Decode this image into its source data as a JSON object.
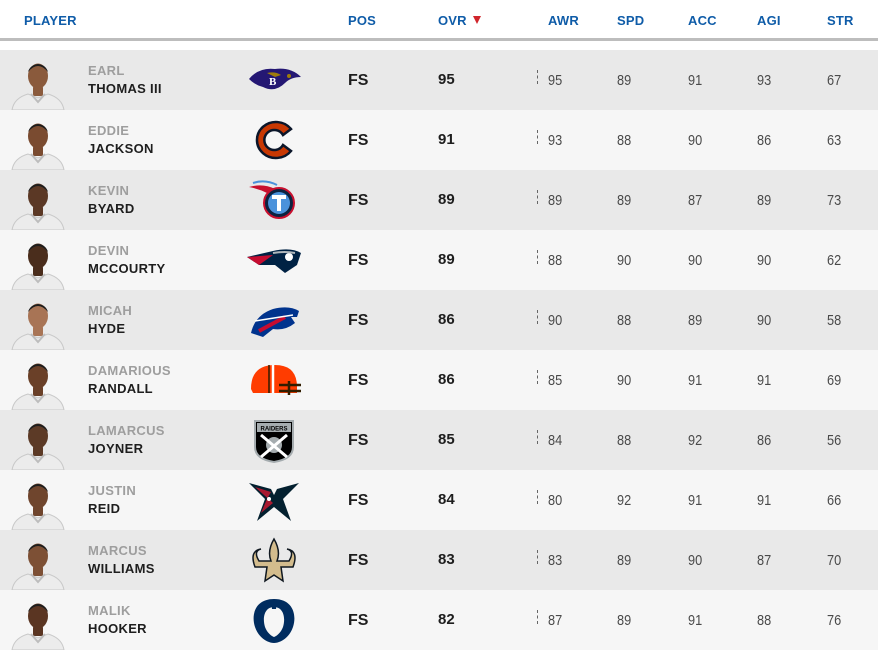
{
  "columns": {
    "player": "PLAYER",
    "pos": "POS",
    "ovr": "OVR",
    "ovr_sort_icon": "triangle-down-red",
    "awr": "AWR",
    "spd": "SPD",
    "acc": "ACC",
    "agi": "AGI",
    "str": "STR"
  },
  "colors": {
    "header_text": "#0f5ca8",
    "sort_arrow": "#d0252b",
    "row_odd": "#e9e9e9",
    "row_even": "#f6f6f6"
  },
  "rows": [
    {
      "first": "EARL",
      "last": "THOMAS III",
      "team_logo": "ravens-logo",
      "pos": "FS",
      "ovr": "95",
      "awr": "95",
      "spd": "89",
      "acc": "91",
      "agi": "93",
      "str": "67"
    },
    {
      "first": "EDDIE",
      "last": "JACKSON",
      "team_logo": "bears-logo",
      "pos": "FS",
      "ovr": "91",
      "awr": "93",
      "spd": "88",
      "acc": "90",
      "agi": "86",
      "str": "63"
    },
    {
      "first": "KEVIN",
      "last": "BYARD",
      "team_logo": "titans-logo",
      "pos": "FS",
      "ovr": "89",
      "awr": "89",
      "spd": "89",
      "acc": "87",
      "agi": "89",
      "str": "73"
    },
    {
      "first": "DEVIN",
      "last": "MCCOURTY",
      "team_logo": "patriots-logo",
      "pos": "FS",
      "ovr": "89",
      "awr": "88",
      "spd": "90",
      "acc": "90",
      "agi": "90",
      "str": "62"
    },
    {
      "first": "MICAH",
      "last": "HYDE",
      "team_logo": "bills-logo",
      "pos": "FS",
      "ovr": "86",
      "awr": "90",
      "spd": "88",
      "acc": "89",
      "agi": "90",
      "str": "58"
    },
    {
      "first": "DAMARIOUS",
      "last": "RANDALL",
      "team_logo": "browns-logo",
      "pos": "FS",
      "ovr": "86",
      "awr": "85",
      "spd": "90",
      "acc": "91",
      "agi": "91",
      "str": "69"
    },
    {
      "first": "LAMARCUS",
      "last": "JOYNER",
      "team_logo": "raiders-logo",
      "pos": "FS",
      "ovr": "85",
      "awr": "84",
      "spd": "88",
      "acc": "92",
      "agi": "86",
      "str": "56"
    },
    {
      "first": "JUSTIN",
      "last": "REID",
      "team_logo": "texans-logo",
      "pos": "FS",
      "ovr": "84",
      "awr": "80",
      "spd": "92",
      "acc": "91",
      "agi": "91",
      "str": "66"
    },
    {
      "first": "MARCUS",
      "last": "WILLIAMS",
      "team_logo": "saints-logo",
      "pos": "FS",
      "ovr": "83",
      "awr": "83",
      "spd": "89",
      "acc": "90",
      "agi": "87",
      "str": "70"
    },
    {
      "first": "MALIK",
      "last": "HOOKER",
      "team_logo": "colts-logo",
      "pos": "FS",
      "ovr": "82",
      "awr": "87",
      "spd": "89",
      "acc": "91",
      "agi": "88",
      "str": "76"
    }
  ],
  "raiders_logo_text": "RAIDERS"
}
